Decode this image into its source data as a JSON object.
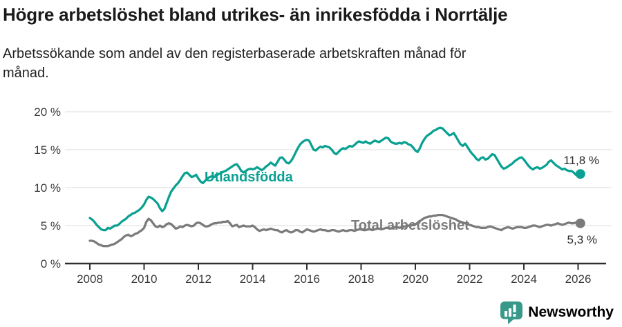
{
  "header": {
    "title": "Högre arbetslöshet bland utrikes- än inrikesfödda i Norrtälje",
    "subtitle_line1": "Arbetssökande som andel av den registerbaserade arbetskraften månad för",
    "subtitle_line2": "månad."
  },
  "chart_data": {
    "type": "line",
    "title": "Högre arbetslöshet bland utrikes- än inrikesfödda i Norrtälje",
    "subtitle": "Arbetssökande som andel av den registerbaserade arbetskraften månad för månad.",
    "grid": true,
    "x_start_year": 2008,
    "x_points_per_year": 12,
    "xlim_years": [
      2007.1,
      2027.3
    ],
    "ylim": [
      0,
      21.5
    ],
    "x_tick_years": [
      2008,
      2010,
      2012,
      2014,
      2016,
      2018,
      2020,
      2022,
      2024,
      2026
    ],
    "x_tick_labels": [
      "2008",
      "2010",
      "2012",
      "2014",
      "2016",
      "2018",
      "2020",
      "2022",
      "2024",
      "2026"
    ],
    "y_ticks": [
      0,
      5,
      10,
      15,
      20
    ],
    "y_tick_labels": [
      "0 %",
      "5 %",
      "10 %",
      "15 %",
      "20 %"
    ],
    "series": [
      {
        "name": "Utlandsfödda",
        "color": "#0aa192",
        "end_value": 11.8,
        "end_label": "11,8 %",
        "values": [
          6.0,
          5.8,
          5.5,
          5.1,
          4.8,
          4.5,
          4.4,
          4.4,
          4.7,
          4.6,
          4.8,
          5.0,
          5.0,
          5.2,
          5.5,
          5.7,
          5.9,
          6.2,
          6.4,
          6.6,
          6.7,
          6.9,
          7.1,
          7.4,
          7.8,
          8.4,
          8.8,
          8.7,
          8.5,
          8.2,
          7.9,
          7.3,
          6.9,
          7.2,
          8.0,
          8.8,
          9.5,
          9.9,
          10.3,
          10.6,
          11.0,
          11.5,
          11.9,
          12.0,
          11.7,
          11.4,
          11.5,
          11.7,
          11.2,
          10.8,
          10.6,
          10.9,
          11.2,
          11.4,
          11.5,
          11.4,
          11.6,
          11.8,
          11.9,
          12.1,
          12.2,
          12.4,
          12.6,
          12.8,
          13.0,
          13.1,
          12.7,
          12.2,
          12.0,
          12.2,
          12.4,
          12.5,
          12.4,
          12.5,
          12.7,
          12.5,
          12.3,
          12.5,
          12.8,
          13.0,
          13.3,
          13.1,
          12.9,
          13.4,
          13.9,
          14.0,
          13.7,
          13.3,
          13.2,
          13.5,
          14.0,
          14.6,
          15.2,
          15.7,
          16.0,
          16.2,
          16.3,
          16.2,
          15.6,
          15.0,
          14.9,
          15.2,
          15.4,
          15.3,
          15.5,
          15.4,
          15.3,
          15.0,
          14.6,
          14.4,
          14.7,
          15.0,
          15.2,
          15.1,
          15.3,
          15.5,
          15.4,
          15.6,
          15.9,
          16.1,
          16.0,
          15.9,
          16.1,
          15.9,
          15.8,
          16.0,
          16.2,
          16.1,
          16.0,
          16.2,
          16.4,
          16.6,
          16.5,
          16.1,
          15.9,
          15.8,
          15.8,
          15.9,
          15.8,
          16.0,
          15.9,
          15.7,
          15.6,
          15.3,
          14.9,
          14.7,
          15.2,
          15.9,
          16.4,
          16.8,
          17.0,
          17.2,
          17.5,
          17.6,
          17.8,
          17.9,
          17.8,
          17.5,
          17.2,
          16.9,
          17.0,
          17.2,
          16.7,
          16.2,
          15.7,
          15.5,
          15.8,
          15.4,
          14.9,
          14.5,
          14.2,
          13.8,
          13.6,
          13.9,
          14.0,
          13.7,
          13.8,
          14.1,
          14.4,
          14.3,
          13.8,
          13.3,
          12.8,
          12.5,
          12.6,
          12.8,
          13.0,
          13.2,
          13.5,
          13.7,
          13.9,
          14.0,
          13.7,
          13.3,
          12.9,
          12.6,
          12.4,
          12.6,
          12.7,
          12.5,
          12.6,
          12.8,
          13.0,
          13.4,
          13.6,
          13.3,
          13.0,
          12.8,
          12.6,
          12.4,
          12.5,
          12.3,
          12.2,
          12.2,
          12.0,
          11.7,
          11.9,
          11.8
        ]
      },
      {
        "name": "Total arbetslöshet",
        "color": "#7b7b7b",
        "end_value": 5.3,
        "end_label": "5,3 %",
        "values": [
          3.0,
          3.0,
          2.9,
          2.7,
          2.5,
          2.4,
          2.3,
          2.3,
          2.3,
          2.4,
          2.5,
          2.6,
          2.8,
          3.0,
          3.2,
          3.5,
          3.7,
          3.8,
          3.6,
          3.7,
          3.9,
          4.0,
          4.2,
          4.4,
          4.7,
          5.5,
          5.9,
          5.7,
          5.3,
          4.9,
          4.8,
          5.0,
          4.8,
          4.9,
          5.2,
          5.3,
          5.2,
          4.9,
          4.6,
          4.7,
          4.9,
          4.8,
          5.0,
          5.1,
          5.0,
          4.9,
          5.0,
          5.3,
          5.4,
          5.3,
          5.1,
          4.9,
          4.9,
          5.0,
          5.2,
          5.3,
          5.3,
          5.4,
          5.4,
          5.5,
          5.5,
          5.6,
          5.3,
          4.9,
          5.0,
          5.1,
          4.8,
          4.9,
          5.0,
          4.9,
          4.9,
          4.9,
          5.0,
          4.8,
          4.5,
          4.3,
          4.4,
          4.5,
          4.4,
          4.5,
          4.6,
          4.5,
          4.4,
          4.4,
          4.2,
          4.1,
          4.3,
          4.4,
          4.2,
          4.1,
          4.2,
          4.4,
          4.4,
          4.2,
          4.1,
          4.3,
          4.5,
          4.4,
          4.3,
          4.2,
          4.3,
          4.4,
          4.5,
          4.4,
          4.4,
          4.3,
          4.3,
          4.4,
          4.4,
          4.3,
          4.2,
          4.3,
          4.4,
          4.3,
          4.3,
          4.4,
          4.4,
          4.3,
          4.4,
          4.5,
          4.5,
          4.4,
          4.4,
          4.5,
          4.5,
          4.4,
          4.5,
          4.6,
          4.6,
          4.5,
          4.6,
          4.7,
          4.7,
          4.6,
          4.7,
          4.8,
          4.8,
          4.7,
          4.8,
          4.9,
          4.9,
          5.0,
          5.0,
          5.1,
          5.2,
          5.3,
          5.6,
          5.8,
          6.0,
          6.1,
          6.2,
          6.2,
          6.3,
          6.3,
          6.4,
          6.4,
          6.4,
          6.3,
          6.2,
          6.1,
          6.0,
          5.9,
          5.8,
          5.6,
          5.5,
          5.4,
          5.3,
          5.2,
          5.1,
          5.0,
          4.9,
          4.8,
          4.8,
          4.7,
          4.7,
          4.7,
          4.8,
          4.9,
          4.8,
          4.7,
          4.6,
          4.5,
          4.4,
          4.6,
          4.7,
          4.8,
          4.7,
          4.6,
          4.7,
          4.8,
          4.8,
          4.8,
          4.7,
          4.7,
          4.8,
          4.9,
          5.0,
          5.0,
          4.9,
          4.8,
          4.9,
          5.0,
          5.1,
          5.1,
          5.0,
          5.1,
          5.2,
          5.3,
          5.2,
          5.1,
          5.2,
          5.3,
          5.4,
          5.3,
          5.3,
          5.4,
          5.3,
          5.3
        ]
      }
    ],
    "colors": {
      "grid": "#e3e3e3",
      "axis": "#2e2e2e",
      "tick_label": "#3a3a3a",
      "end_label": "#2b2b2b"
    }
  },
  "branding": {
    "logo_text": "Newsworthy",
    "logo_color": "#38998b",
    "icon": "newsworthy-bubble-chart-icon"
  }
}
